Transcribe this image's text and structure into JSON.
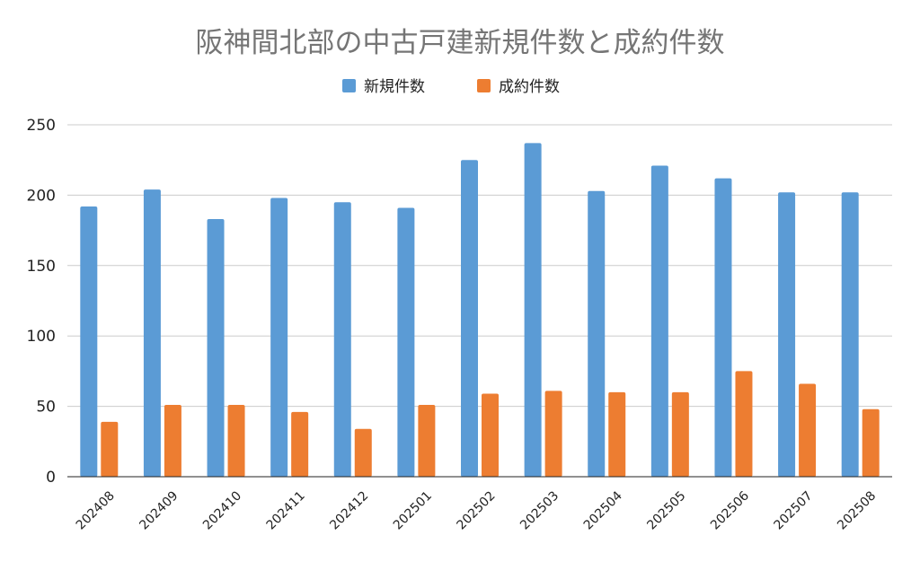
{
  "chart_data": {
    "type": "bar",
    "title": "阪神間北部の中古戸建新規件数と成約件数",
    "categories": [
      "202408",
      "202409",
      "202410",
      "202411",
      "202412",
      "202501",
      "202502",
      "202503",
      "202504",
      "202505",
      "202506",
      "202507",
      "202508"
    ],
    "series": [
      {
        "name": "新規件数",
        "color": "#5b9bd5",
        "values": [
          192,
          204,
          183,
          198,
          195,
          191,
          225,
          237,
          203,
          221,
          212,
          202,
          202
        ]
      },
      {
        "name": "成約件数",
        "color": "#ed7d31",
        "values": [
          39,
          51,
          51,
          46,
          34,
          51,
          59,
          61,
          60,
          60,
          75,
          66,
          48
        ]
      }
    ],
    "ylim": [
      0,
      250
    ],
    "yticks": [
      0,
      50,
      100,
      150,
      200,
      250
    ],
    "xlabel": "",
    "ylabel": "",
    "grid": true,
    "legend_position": "top"
  }
}
